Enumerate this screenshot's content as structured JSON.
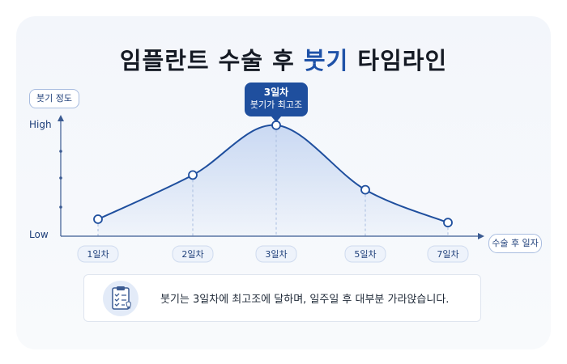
{
  "title": {
    "main": "임플란트 수술 후",
    "accent": "붓기",
    "tail": "타임라인"
  },
  "chart_data": {
    "type": "line",
    "ylabel": "붓기 정도",
    "xlabel": "수술 후 일자",
    "y_ticks": [
      "High",
      "Low"
    ],
    "ylim": [
      0,
      100
    ],
    "categories": [
      "1일차",
      "2일차",
      "3일차",
      "5일차",
      "7일차"
    ],
    "values": [
      15,
      54,
      98,
      41,
      12
    ],
    "peak_label": {
      "line1": "3일차",
      "line2": "붓기가 최고조"
    },
    "grid": false
  },
  "note": {
    "text": "붓기는 3일차에 최고조에 달하며, 일주일 후 대부분 가라앉습니다.",
    "icon": "clipboard-check-icon"
  },
  "colors": {
    "line": "#1f4f9e",
    "fill": "#c7d7f2",
    "accent": "#1f52a8",
    "axis": "#3b5b92"
  }
}
